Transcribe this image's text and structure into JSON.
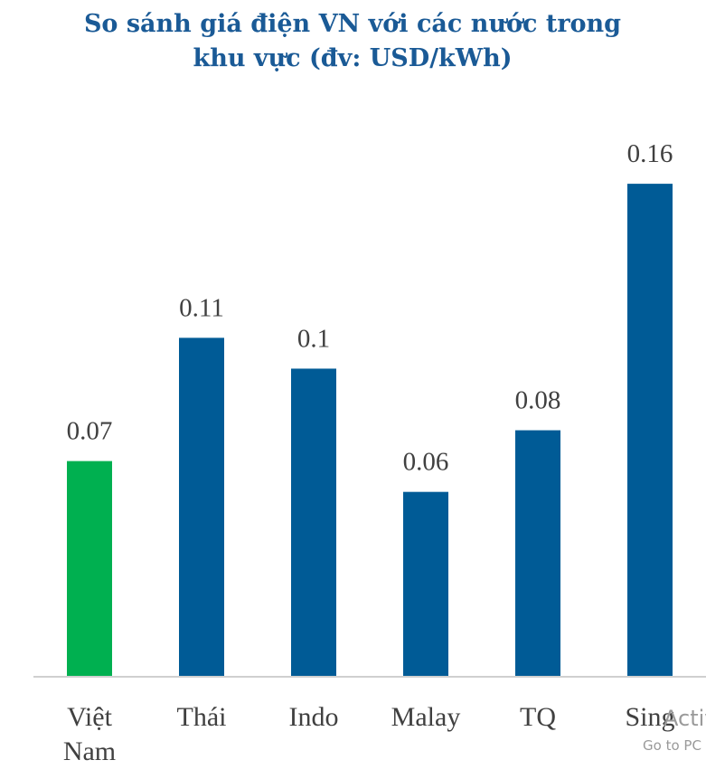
{
  "chart_data": {
    "type": "bar",
    "title": "So sánh giá điện VN với các nước trong khu vực (đv: USD/kWh)",
    "categories": [
      "Việt Nam",
      "Thái",
      "Indo",
      "Malay",
      "TQ",
      "Sing"
    ],
    "values": [
      0.07,
      0.11,
      0.1,
      0.06,
      0.08,
      0.16
    ],
    "colors": [
      "#00b050",
      "#005b96",
      "#005b96",
      "#005b96",
      "#005b96",
      "#005b96"
    ],
    "ylim": [
      0,
      0.18
    ]
  },
  "overlay": {
    "line1": "Activat",
    "line2": "Go to PC"
  }
}
